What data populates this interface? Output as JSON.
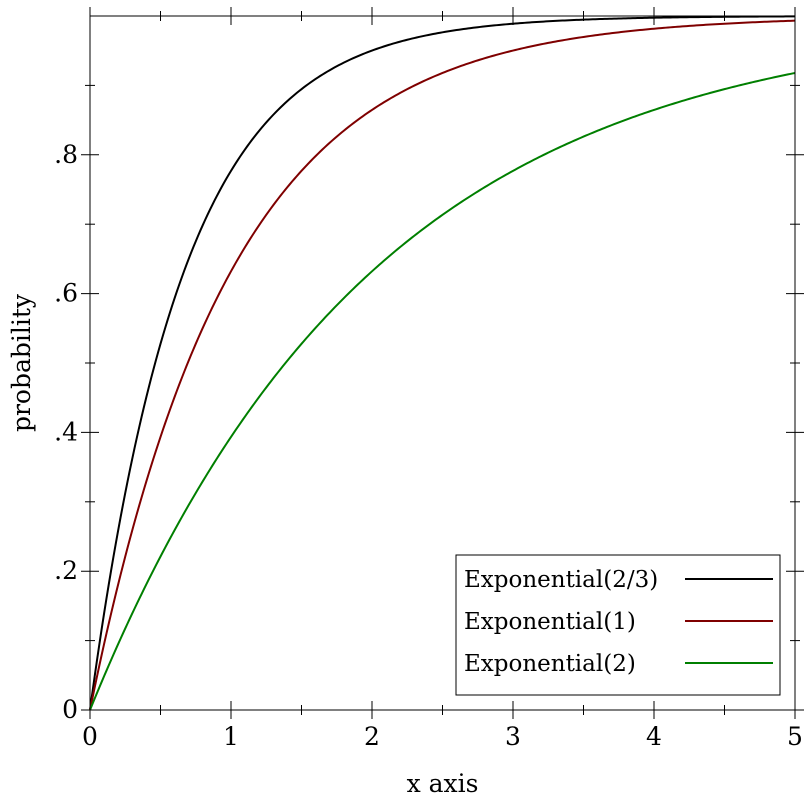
{
  "chart_data": {
    "type": "line",
    "title": "",
    "xlabel": "x axis",
    "ylabel": "probability",
    "xlim": [
      0,
      5
    ],
    "ylim": [
      0,
      1
    ],
    "grid": false,
    "legend_position": "bottom-right",
    "x_tick_labels": [
      "0",
      "1",
      "2",
      "3",
      "4",
      "5"
    ],
    "y_tick_labels": [
      "0",
      ".2",
      ".4",
      ".6",
      ".8"
    ],
    "x": [
      0,
      0.25,
      0.5,
      0.75,
      1,
      1.25,
      1.5,
      1.75,
      2,
      2.25,
      2.5,
      2.75,
      3,
      3.25,
      3.5,
      3.75,
      4,
      4.25,
      4.5,
      4.75,
      5
    ],
    "series": [
      {
        "name": "Exponential(2/3)",
        "color": "#000000",
        "mean": 0.6667,
        "values": [
          0,
          0.313,
          0.528,
          0.675,
          0.777,
          0.847,
          0.895,
          0.928,
          0.95,
          0.966,
          0.976,
          0.984,
          0.989,
          0.992,
          0.995,
          0.996,
          0.998,
          0.998,
          0.999,
          0.999,
          0.999
        ]
      },
      {
        "name": "Exponential(1)",
        "color": "#7f0000",
        "mean": 1,
        "values": [
          0,
          0.221,
          0.393,
          0.528,
          0.632,
          0.713,
          0.777,
          0.826,
          0.865,
          0.895,
          0.918,
          0.936,
          0.95,
          0.961,
          0.97,
          0.976,
          0.982,
          0.986,
          0.989,
          0.991,
          0.993
        ]
      },
      {
        "name": "Exponential(2)",
        "color": "#007f00",
        "mean": 2,
        "values": [
          0,
          0.118,
          0.221,
          0.313,
          0.393,
          0.465,
          0.528,
          0.583,
          0.632,
          0.675,
          0.713,
          0.747,
          0.777,
          0.803,
          0.826,
          0.847,
          0.865,
          0.881,
          0.895,
          0.907,
          0.918
        ]
      }
    ]
  }
}
